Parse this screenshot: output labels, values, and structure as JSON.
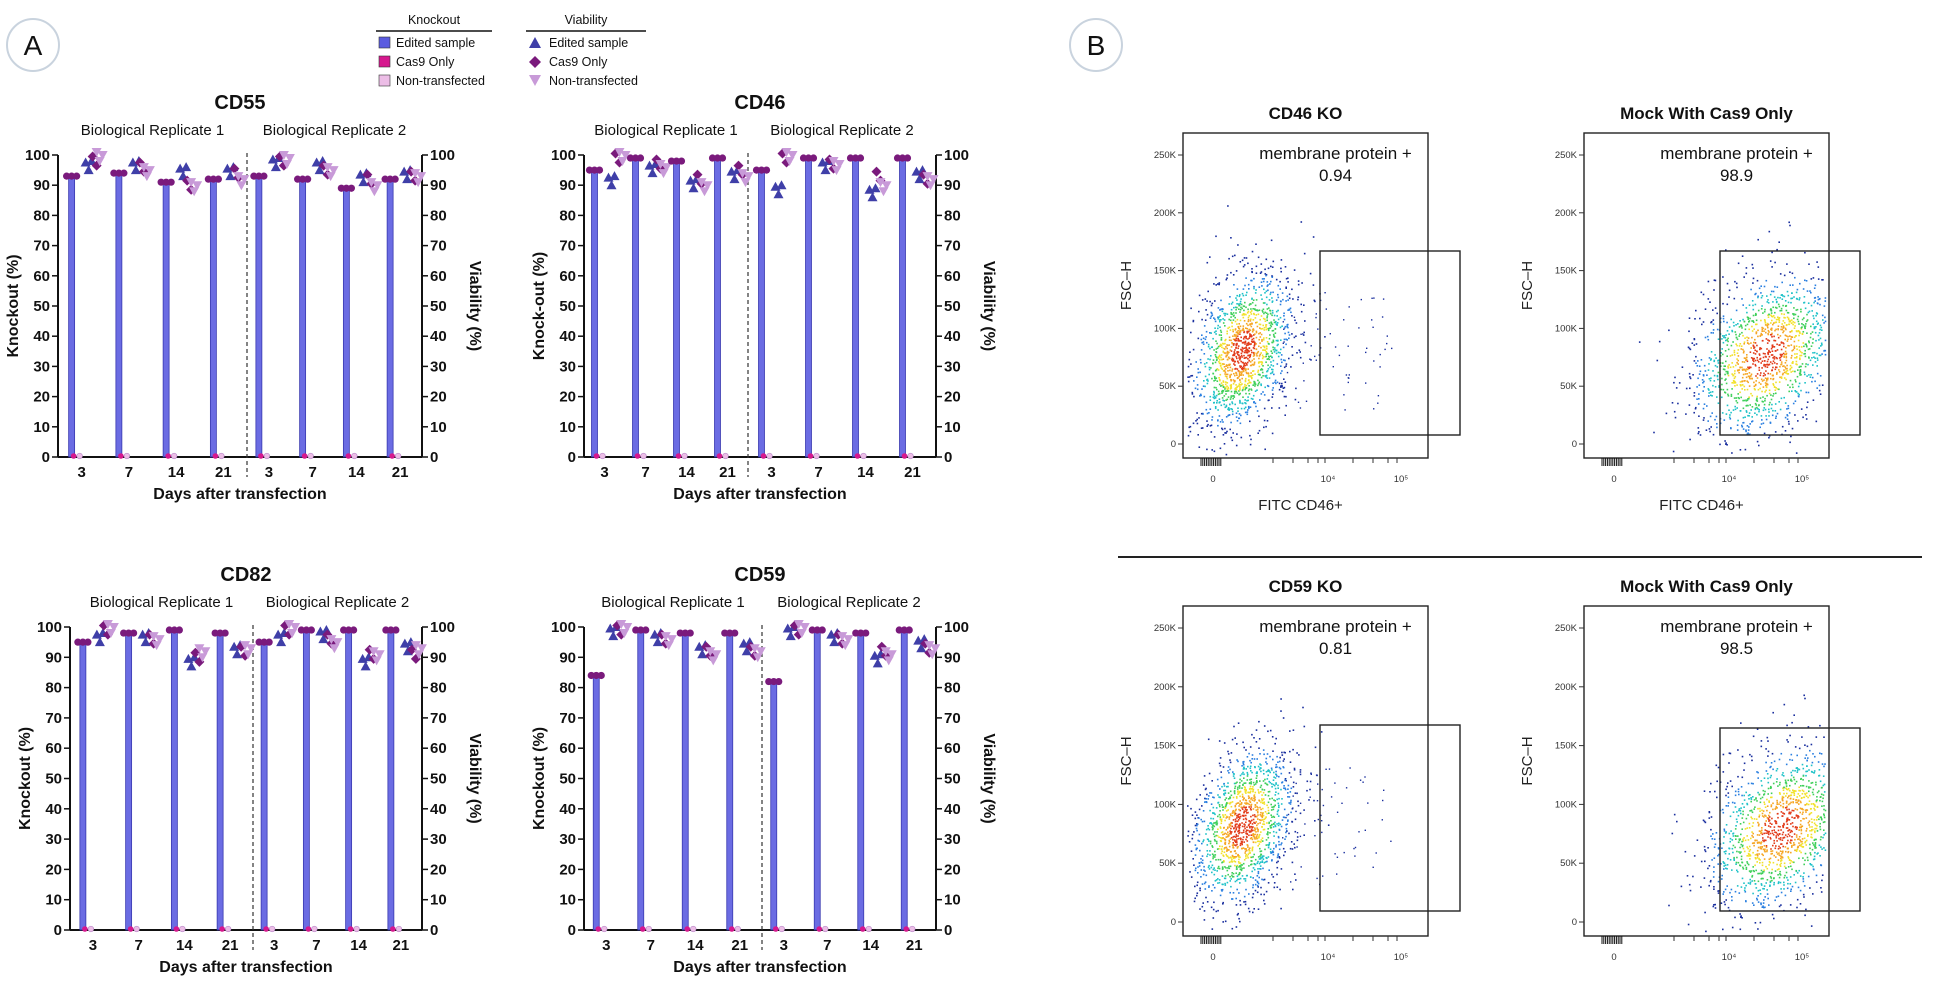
{
  "panel_labels": [
    "A",
    "B"
  ],
  "legend": {
    "knockout_header": "Knockout",
    "viability_header": "Viability",
    "items": [
      "Edited sample",
      "Cas9 Only",
      "Non-transfected"
    ]
  },
  "colors": {
    "edited": "#5b5ce0",
    "edited_viability": "#3f3fa8",
    "cas9": "#7a1a7c",
    "cas9_legend": "#d6188e",
    "nontransfected": "#c89ad8",
    "nontransfected_legend": "#ecbde6"
  },
  "chart_data": [
    {
      "type": "bar",
      "title": "CD55",
      "xlabel": "Days after transfection",
      "ylabel": "Knockout (%)",
      "y2label": "Viability (%)",
      "ylim": [
        0,
        100
      ],
      "yticks": [
        "0",
        "10",
        "20",
        "30",
        "40",
        "50",
        "60",
        "70",
        "80",
        "90",
        "100"
      ],
      "groups": [
        "Biological Replicate 1",
        "Biological Replicate 2"
      ],
      "categories": [
        "3",
        "7",
        "14",
        "21"
      ],
      "series": [
        {
          "name": "Edited sample",
          "axis": "Knockout",
          "values": [
            [
              93,
              94,
              91,
              92
            ],
            [
              93,
              92,
              89,
              92
            ]
          ]
        },
        {
          "name": "Cas9 Only",
          "axis": "Knockout",
          "values": [
            [
              0,
              0,
              0,
              0
            ],
            [
              0,
              0,
              0,
              0
            ]
          ]
        },
        {
          "name": "Non-transfected",
          "axis": "Knockout",
          "values": [
            [
              0,
              0,
              0,
              0
            ],
            [
              0,
              0,
              0,
              0
            ]
          ]
        },
        {
          "name": "Edited sample",
          "axis": "Viability",
          "values": [
            [
              96,
              96,
              94,
              94
            ],
            [
              97,
              96,
              92,
              93
            ]
          ]
        },
        {
          "name": "Cas9 Only",
          "axis": "Viability",
          "values": [
            [
              98,
              96,
              90,
              94
            ],
            [
              98,
              95,
              92,
              93
            ]
          ]
        },
        {
          "name": "Non-transfected",
          "axis": "Viability",
          "values": [
            [
              99,
              94,
              89,
              91
            ],
            [
              98,
              94,
              89,
              92
            ]
          ]
        }
      ]
    },
    {
      "type": "bar",
      "title": "CD46",
      "xlabel": "Days after transfection",
      "ylabel": "Knock-out (%)",
      "y2label": "Viability (%)",
      "ylim": [
        0,
        100
      ],
      "yticks": [
        "0",
        "10",
        "20",
        "30",
        "40",
        "50",
        "60",
        "70",
        "80",
        "90",
        "100"
      ],
      "groups": [
        "Biological Replicate 1",
        "Biological Replicate 2"
      ],
      "categories": [
        "3",
        "7",
        "14",
        "21"
      ],
      "series": [
        {
          "name": "Edited sample",
          "axis": "Knockout",
          "values": [
            [
              95,
              99,
              98,
              99
            ],
            [
              95,
              99,
              99,
              99
            ]
          ]
        },
        {
          "name": "Cas9 Only",
          "axis": "Knockout",
          "values": [
            [
              0,
              0,
              0,
              0
            ],
            [
              0,
              0,
              0,
              0
            ]
          ]
        },
        {
          "name": "Non-transfected",
          "axis": "Knockout",
          "values": [
            [
              0,
              0,
              0,
              0
            ],
            [
              0,
              0,
              0,
              0
            ]
          ]
        },
        {
          "name": "Edited sample",
          "axis": "Viability",
          "values": [
            [
              91,
              95,
              90,
              93
            ],
            [
              88,
              96,
              87,
              93
            ]
          ]
        },
        {
          "name": "Cas9 Only",
          "axis": "Viability",
          "values": [
            [
              99,
              97,
              92,
              95
            ],
            [
              99,
              97,
              93,
              92
            ]
          ]
        },
        {
          "name": "Non-transfected",
          "axis": "Viability",
          "values": [
            [
              99,
              95,
              89,
              92
            ],
            [
              99,
              96,
              89,
              91
            ]
          ]
        }
      ]
    },
    {
      "type": "bar",
      "title": "CD82",
      "xlabel": "Days after transfection",
      "ylabel": "Knockout (%)",
      "y2label": "Viability (%)",
      "ylim": [
        0,
        100
      ],
      "yticks": [
        "0",
        "10",
        "20",
        "30",
        "40",
        "50",
        "60",
        "70",
        "80",
        "90",
        "100"
      ],
      "groups": [
        "Biological Replicate 1",
        "Biological Replicate 2"
      ],
      "categories": [
        "3",
        "7",
        "14",
        "21"
      ],
      "series": [
        {
          "name": "Edited sample",
          "axis": "Knockout",
          "values": [
            [
              95,
              98,
              99,
              98
            ],
            [
              95,
              99,
              99,
              99
            ]
          ]
        },
        {
          "name": "Cas9 Only",
          "axis": "Knockout",
          "values": [
            [
              0,
              0,
              0,
              0
            ],
            [
              0,
              0,
              0,
              0
            ]
          ]
        },
        {
          "name": "Non-transfected",
          "axis": "Knockout",
          "values": [
            [
              0,
              0,
              0,
              0
            ],
            [
              0,
              0,
              0,
              0
            ]
          ]
        },
        {
          "name": "Edited sample",
          "axis": "Viability",
          "values": [
            [
              96,
              96,
              88,
              92
            ],
            [
              96,
              97,
              88,
              93
            ]
          ]
        },
        {
          "name": "Cas9 Only",
          "axis": "Viability",
          "values": [
            [
              99,
              96,
              90,
              92
            ],
            [
              99,
              96,
              91,
              91
            ]
          ]
        },
        {
          "name": "Non-transfected",
          "axis": "Viability",
          "values": [
            [
              99,
              95,
              91,
              92
            ],
            [
              99,
              94,
              90,
              92
            ]
          ]
        }
      ]
    },
    {
      "type": "bar",
      "title": "CD59",
      "xlabel": "Days after transfection",
      "ylabel": "Knockout (%)",
      "y2label": "Viability (%)",
      "ylim": [
        0,
        100
      ],
      "yticks": [
        "0",
        "10",
        "20",
        "30",
        "40",
        "50",
        "60",
        "70",
        "80",
        "90",
        "100"
      ],
      "groups": [
        "Biological Replicate 1",
        "Biological Replicate 2"
      ],
      "categories": [
        "3",
        "7",
        "14",
        "21"
      ],
      "series": [
        {
          "name": "Edited sample",
          "axis": "Knockout",
          "values": [
            [
              84,
              99,
              98,
              98
            ],
            [
              82,
              99,
              98,
              99
            ]
          ]
        },
        {
          "name": "Cas9 Only",
          "axis": "Knockout",
          "values": [
            [
              0,
              0,
              0,
              0
            ],
            [
              0,
              0,
              0,
              0
            ]
          ]
        },
        {
          "name": "Non-transfected",
          "axis": "Knockout",
          "values": [
            [
              0,
              0,
              0,
              0
            ],
            [
              0,
              0,
              0,
              0
            ]
          ]
        },
        {
          "name": "Edited sample",
          "axis": "Viability",
          "values": [
            [
              98,
              96,
              92,
              93
            ],
            [
              98,
              96,
              89,
              94
            ]
          ]
        },
        {
          "name": "Cas9 Only",
          "axis": "Viability",
          "values": [
            [
              99,
              96,
              92,
              92
            ],
            [
              99,
              96,
              92,
              93
            ]
          ]
        },
        {
          "name": "Non-transfected",
          "axis": "Viability",
          "values": [
            [
              99,
              95,
              90,
              91
            ],
            [
              99,
              95,
              90,
              92
            ]
          ]
        }
      ]
    }
  ],
  "flow": {
    "ylabel": "FSC–H",
    "xlabel": "FITC CD46+",
    "yticks": [
      "0",
      "50K",
      "100K",
      "150K",
      "200K",
      "250K"
    ],
    "xticks": [
      "0",
      "10⁴",
      "10⁵"
    ],
    "gate_label": "membrane protein +",
    "plots": [
      {
        "title": "CD46 KO",
        "value": "0.94",
        "show_xlabel": true
      },
      {
        "title": "Mock With Cas9 Only",
        "value": "98.9",
        "show_xlabel": true
      },
      {
        "title": "CD59 KO",
        "value": "0.81",
        "show_xlabel": false
      },
      {
        "title": "Mock With Cas9 Only",
        "value": "98.5",
        "show_xlabel": false
      }
    ]
  }
}
